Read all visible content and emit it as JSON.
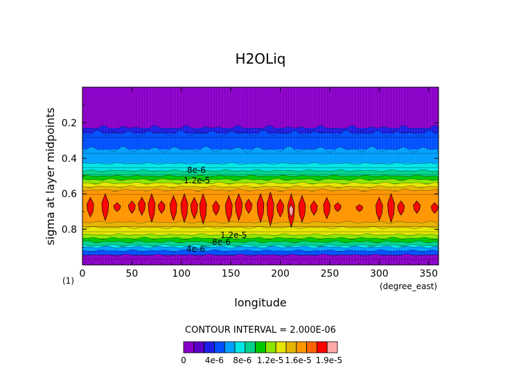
{
  "chart_data": {
    "type": "heatmap",
    "title": "H2OLiq",
    "xlabel": "longitude",
    "ylabel": "sigma at layer midpoints",
    "x_units": "(degree_east)",
    "page_marker": "(1)",
    "xlim": [
      0,
      360
    ],
    "ylim": [
      1.0,
      0.0
    ],
    "x_ticks": [
      "0",
      "50",
      "100",
      "150",
      "200",
      "250",
      "300",
      "350"
    ],
    "x_tick_values": [
      0,
      50,
      100,
      150,
      200,
      250,
      300,
      350
    ],
    "y_ticks": [
      "0.2",
      "0.4",
      "0.6",
      "0.8"
    ],
    "y_tick_values": [
      0.2,
      0.4,
      0.6,
      0.8
    ],
    "contour_interval_text": "CONTOUR INTERVAL = 2.000E-06",
    "contour_labels": [
      "8e-6",
      "1.2e-5",
      "1.2e-5",
      "8e-6",
      "4e-6"
    ],
    "colorbar": {
      "labels": [
        "0",
        "4e-6",
        "8e-6",
        "1.2e-5",
        "1.6e-5",
        "1.9e-5"
      ],
      "colors": [
        "#8a00c8",
        "#5a00c8",
        "#1e1ee6",
        "#0050ff",
        "#00a0ff",
        "#00e6e6",
        "#00d28c",
        "#00c800",
        "#8ce600",
        "#e6e600",
        "#e6b400",
        "#ff9600",
        "#ff6400",
        "#ff0000",
        "#ffaaaa"
      ]
    },
    "bands": [
      {
        "sigma_top": 0.0,
        "sigma_bot": 0.23,
        "color": "#8a00c8"
      },
      {
        "sigma_top": 0.23,
        "sigma_bot": 0.26,
        "color": "#1e1ee6"
      },
      {
        "sigma_top": 0.26,
        "sigma_bot": 0.35,
        "color": "#0050ff"
      },
      {
        "sigma_top": 0.35,
        "sigma_bot": 0.43,
        "color": "#00a0ff"
      },
      {
        "sigma_top": 0.43,
        "sigma_bot": 0.47,
        "color": "#00e6e6"
      },
      {
        "sigma_top": 0.47,
        "sigma_bot": 0.5,
        "color": "#00d28c"
      },
      {
        "sigma_top": 0.5,
        "sigma_bot": 0.52,
        "color": "#00c800"
      },
      {
        "sigma_top": 0.52,
        "sigma_bot": 0.54,
        "color": "#8ce600"
      },
      {
        "sigma_top": 0.54,
        "sigma_bot": 0.56,
        "color": "#e6e600"
      },
      {
        "sigma_top": 0.56,
        "sigma_bot": 0.58,
        "color": "#e6b400"
      },
      {
        "sigma_top": 0.58,
        "sigma_bot": 0.76,
        "color": "#ff9600"
      },
      {
        "sigma_top": 0.76,
        "sigma_bot": 0.79,
        "color": "#e6b400"
      },
      {
        "sigma_top": 0.79,
        "sigma_bot": 0.83,
        "color": "#e6e600"
      },
      {
        "sigma_top": 0.83,
        "sigma_bot": 0.85,
        "color": "#8ce600"
      },
      {
        "sigma_top": 0.85,
        "sigma_bot": 0.87,
        "color": "#00c800"
      },
      {
        "sigma_top": 0.87,
        "sigma_bot": 0.89,
        "color": "#00d28c"
      },
      {
        "sigma_top": 0.89,
        "sigma_bot": 0.9,
        "color": "#00e6e6"
      },
      {
        "sigma_top": 0.9,
        "sigma_bot": 0.92,
        "color": "#00a0ff"
      },
      {
        "sigma_top": 0.92,
        "sigma_bot": 0.945,
        "color": "#0050ff"
      },
      {
        "sigma_top": 0.945,
        "sigma_bot": 1.0,
        "color": "#8a00c8"
      }
    ],
    "max_cells_red": [
      {
        "lon": 8,
        "sigma_top": 0.62,
        "sigma_bot": 0.73
      },
      {
        "lon": 23,
        "sigma_top": 0.6,
        "sigma_bot": 0.75
      },
      {
        "lon": 35,
        "sigma_top": 0.65,
        "sigma_bot": 0.7
      },
      {
        "lon": 50,
        "sigma_top": 0.64,
        "sigma_bot": 0.71
      },
      {
        "lon": 60,
        "sigma_top": 0.62,
        "sigma_bot": 0.72
      },
      {
        "lon": 70,
        "sigma_top": 0.6,
        "sigma_bot": 0.76
      },
      {
        "lon": 80,
        "sigma_top": 0.64,
        "sigma_bot": 0.71
      },
      {
        "lon": 92,
        "sigma_top": 0.61,
        "sigma_bot": 0.75
      },
      {
        "lon": 103,
        "sigma_top": 0.6,
        "sigma_bot": 0.76
      },
      {
        "lon": 113,
        "sigma_top": 0.62,
        "sigma_bot": 0.74
      },
      {
        "lon": 122,
        "sigma_top": 0.6,
        "sigma_bot": 0.77
      },
      {
        "lon": 135,
        "sigma_top": 0.64,
        "sigma_bot": 0.72
      },
      {
        "lon": 148,
        "sigma_top": 0.61,
        "sigma_bot": 0.76
      },
      {
        "lon": 158,
        "sigma_top": 0.6,
        "sigma_bot": 0.75
      },
      {
        "lon": 168,
        "sigma_top": 0.63,
        "sigma_bot": 0.71
      },
      {
        "lon": 180,
        "sigma_top": 0.6,
        "sigma_bot": 0.76
      },
      {
        "lon": 190,
        "sigma_top": 0.59,
        "sigma_bot": 0.78
      },
      {
        "lon": 200,
        "sigma_top": 0.63,
        "sigma_bot": 0.73
      },
      {
        "lon": 211,
        "sigma_top": 0.6,
        "sigma_bot": 0.79
      },
      {
        "lon": 222,
        "sigma_top": 0.61,
        "sigma_bot": 0.76
      },
      {
        "lon": 234,
        "sigma_top": 0.64,
        "sigma_bot": 0.72
      },
      {
        "lon": 247,
        "sigma_top": 0.62,
        "sigma_bot": 0.74
      },
      {
        "lon": 258,
        "sigma_top": 0.65,
        "sigma_bot": 0.7
      },
      {
        "lon": 280,
        "sigma_top": 0.66,
        "sigma_bot": 0.7
      },
      {
        "lon": 300,
        "sigma_top": 0.62,
        "sigma_bot": 0.75
      },
      {
        "lon": 312,
        "sigma_top": 0.6,
        "sigma_bot": 0.76
      },
      {
        "lon": 322,
        "sigma_top": 0.64,
        "sigma_bot": 0.72
      },
      {
        "lon": 338,
        "sigma_top": 0.64,
        "sigma_bot": 0.71
      },
      {
        "lon": 356,
        "sigma_top": 0.65,
        "sigma_bot": 0.71
      }
    ],
    "max_cells_pink": [
      {
        "lon": 211,
        "sigma_top": 0.66,
        "sigma_bot": 0.73
      }
    ]
  }
}
